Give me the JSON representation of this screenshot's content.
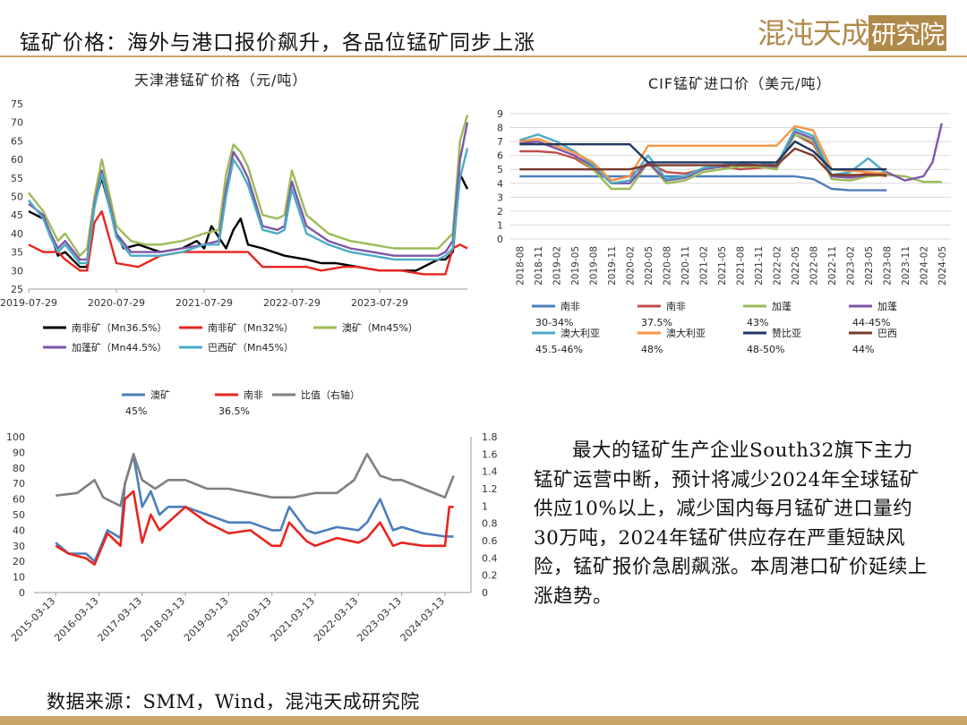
{
  "header": {
    "title": "锰矿价格：海外与港口报价飙升，各品位锰矿同步上涨",
    "logo_text": "混沌天成研究院"
  },
  "body_text": "最大的锰矿生产企业South32旗下主力锰矿运营中断，预计将减少2024年全球锰矿供应10%以上，减少国内每月锰矿进口量约30万吨，2024年锰矿供应存在严重短缺风险，锰矿报价急剧飙涨。本周港口矿价延续上涨趋势。",
  "source_text": "数据来源：SMM，Wind，混沌天成研究院",
  "colors": {
    "accent": "#c9a567",
    "logo": "#b08a4a"
  },
  "chart_data": [
    {
      "type": "line",
      "title": "天津港锰矿价格（元/吨）",
      "x_ticks": [
        "2019-07-29",
        "2020-07-29",
        "2021-07-29",
        "2022-07-29",
        "2023-07-29"
      ],
      "ylim": [
        25,
        75
      ],
      "y_ticks": [
        25,
        30,
        35,
        40,
        45,
        50,
        55,
        60,
        65,
        70,
        75
      ],
      "t_range": [
        0,
        60
      ],
      "series": [
        {
          "name": "南非矿（Mn36.5%）",
          "color": "#000000",
          "t": [
            0,
            2,
            3,
            4,
            5,
            7,
            8,
            9,
            10,
            12,
            13,
            15,
            18,
            21,
            23,
            24,
            25,
            27,
            28,
            29,
            30,
            32,
            35,
            38,
            40,
            42,
            45,
            48,
            50,
            53,
            55,
            56,
            57,
            58,
            59,
            60
          ],
          "values": [
            46,
            44,
            40,
            34,
            35,
            31,
            31,
            48,
            55,
            40,
            36,
            37,
            35,
            36,
            38,
            36,
            42,
            36,
            41,
            44,
            37,
            36,
            34,
            33,
            32,
            32,
            31,
            30,
            30,
            30,
            32,
            33,
            33,
            35,
            56,
            52
          ]
        },
        {
          "name": "南非矿（Mn32%）",
          "color": "#e8251f",
          "t": [
            0,
            2,
            4,
            5,
            7,
            8,
            9,
            10,
            12,
            15,
            18,
            21,
            24,
            25,
            27,
            28,
            30,
            32,
            35,
            38,
            40,
            43,
            45,
            48,
            51,
            54,
            56,
            57,
            58,
            59,
            60
          ],
          "values": [
            37,
            35,
            35,
            33,
            30,
            30,
            43,
            46,
            32,
            31,
            34,
            35,
            35,
            35,
            35,
            35,
            35,
            31,
            31,
            31,
            30,
            31,
            31,
            30,
            30,
            29,
            29,
            29,
            36,
            37,
            36
          ]
        },
        {
          "name": "澳矿（Mn45%）",
          "color": "#9bbb59",
          "t": [
            0,
            2,
            3,
            4,
            5,
            7,
            8,
            9,
            10,
            12,
            14,
            16,
            18,
            21,
            24,
            26,
            27,
            28,
            29,
            30,
            32,
            34,
            35,
            36,
            38,
            41,
            44,
            47,
            50,
            53,
            56,
            57,
            58,
            59,
            60
          ],
          "values": [
            51,
            46,
            42,
            38,
            40,
            34,
            36,
            50,
            60,
            42,
            38,
            37,
            37,
            38,
            40,
            41,
            56,
            64,
            62,
            58,
            45,
            44,
            45,
            57,
            45,
            40,
            38,
            37,
            36,
            36,
            36,
            38,
            40,
            65,
            72
          ]
        },
        {
          "name": "加蓬矿（Mn44.5%）",
          "color": "#7e57a8",
          "t": [
            0,
            2,
            3,
            4,
            5,
            7,
            8,
            9,
            10,
            12,
            14,
            16,
            18,
            21,
            24,
            26,
            27,
            28,
            29,
            30,
            32,
            34,
            35,
            36,
            38,
            41,
            44,
            47,
            50,
            53,
            56,
            57,
            58,
            59,
            60
          ],
          "values": [
            48,
            45,
            40,
            36,
            38,
            33,
            33,
            48,
            57,
            40,
            35,
            35,
            35,
            36,
            37,
            38,
            52,
            62,
            59,
            55,
            42,
            41,
            42,
            54,
            42,
            38,
            36,
            35,
            34,
            34,
            34,
            35,
            38,
            60,
            70
          ]
        },
        {
          "name": "巴西矿（Mn45%）",
          "color": "#4bacc6",
          "t": [
            0,
            2,
            3,
            4,
            5,
            7,
            8,
            9,
            10,
            12,
            14,
            16,
            18,
            21,
            24,
            26,
            27,
            28,
            29,
            30,
            32,
            34,
            35,
            36,
            38,
            41,
            44,
            47,
            50,
            53,
            56,
            57,
            58,
            59,
            60
          ],
          "values": [
            49,
            44,
            39,
            35,
            37,
            32,
            32,
            47,
            56,
            39,
            34,
            34,
            34,
            35,
            37,
            37,
            50,
            60,
            57,
            53,
            41,
            40,
            41,
            52,
            40,
            37,
            35,
            34,
            33,
            33,
            33,
            34,
            36,
            55,
            63
          ]
        }
      ]
    },
    {
      "type": "line",
      "title": "CIF锰矿进口价（美元/吨）",
      "x_ticks": [
        "2018-08",
        "2018-11",
        "2019-02",
        "2019-05",
        "2019-08",
        "2019-11",
        "2020-02",
        "2020-05",
        "2020-08",
        "2020-11",
        "2021-02",
        "2021-05",
        "2021-08",
        "2021-11",
        "2022-02",
        "2022-05",
        "2022-08",
        "2022-11",
        "2023-02",
        "2023-05",
        "2023-08",
        "2023-11",
        "2024-02",
        "2024-05"
      ],
      "ylim": [
        0,
        9
      ],
      "y_ticks": [
        0,
        1,
        2,
        3,
        4,
        5,
        6,
        7,
        8,
        9
      ],
      "series": [
        {
          "name": "南非",
          "name2": "30-34%",
          "color": "#4a7ebb",
          "t": [
            0,
            1,
            2,
            3,
            4,
            5,
            6,
            7,
            8,
            9,
            10,
            11,
            12,
            13,
            14,
            15,
            16,
            17,
            18,
            19,
            20
          ],
          "values": [
            4.5,
            4.5,
            4.5,
            4.5,
            4.5,
            4.5,
            4.5,
            4.5,
            4.5,
            4.5,
            4.5,
            4.5,
            4.5,
            4.5,
            4.5,
            4.5,
            4.3,
            3.6,
            3.5,
            3.5,
            3.5
          ]
        },
        {
          "name": "南非",
          "name2": "37.5%",
          "color": "#c0504d",
          "t": [
            0,
            1,
            2,
            3,
            4,
            5,
            6,
            7,
            8,
            9,
            10,
            11,
            12,
            13,
            14,
            15,
            16,
            17,
            18,
            19,
            20
          ],
          "values": [
            6.3,
            6.3,
            6.2,
            5.8,
            5.0,
            4.2,
            4.5,
            5.5,
            4.8,
            4.7,
            5.0,
            5.2,
            5.0,
            5.1,
            5.2,
            7.5,
            6.8,
            4.5,
            4.5,
            4.7,
            4.5
          ]
        },
        {
          "name": "加蓬",
          "name2": "43%",
          "color": "#9bbb59",
          "t": [
            0,
            1,
            2,
            3,
            4,
            5,
            6,
            7,
            8,
            9,
            10,
            11,
            12,
            13,
            14,
            15,
            16,
            17,
            18,
            19,
            20,
            21,
            22,
            23
          ],
          "values": [
            6.8,
            7.0,
            6.5,
            6.0,
            5.0,
            3.6,
            3.6,
            5.5,
            4.0,
            4.2,
            4.8,
            5.0,
            5.2,
            5.2,
            5.0,
            7.5,
            7.0,
            4.3,
            4.2,
            4.5,
            4.6,
            4.5,
            4.1,
            4.1
          ]
        },
        {
          "name": "加蓬",
          "name2": "44-45%",
          "color": "#7e57a8",
          "t": [
            0,
            1,
            2,
            3,
            4,
            5,
            6,
            7,
            8,
            9,
            10,
            11,
            12,
            13,
            14,
            15,
            16,
            17,
            18,
            19,
            20,
            21,
            22,
            22.5,
            23
          ],
          "values": [
            6.9,
            7.0,
            6.5,
            6.0,
            5.2,
            4.0,
            4.0,
            5.5,
            4.2,
            4.4,
            5.0,
            5.2,
            5.4,
            5.3,
            5.2,
            7.7,
            7.2,
            4.5,
            4.4,
            4.6,
            4.8,
            4.2,
            4.5,
            5.5,
            8.3
          ]
        },
        {
          "name": "澳大利亚",
          "name2": "45.5-46%",
          "color": "#4bacc6",
          "t": [
            0,
            1,
            2,
            3,
            4,
            5,
            6,
            7,
            8,
            9,
            10,
            11,
            12,
            13,
            14,
            15,
            16,
            17,
            18,
            19,
            20
          ],
          "values": [
            7.1,
            7.5,
            7.0,
            6.3,
            5.3,
            4.0,
            4.2,
            6.0,
            4.3,
            4.5,
            5.1,
            5.3,
            5.5,
            5.5,
            5.3,
            7.9,
            7.4,
            4.6,
            4.8,
            5.8,
            4.7
          ]
        },
        {
          "name": "澳大利亚",
          "name2": "48%",
          "color": "#f79646",
          "t": [
            0,
            1,
            2,
            3,
            4,
            5,
            6,
            7,
            8,
            9,
            10,
            11,
            12,
            13,
            14,
            15,
            16,
            17,
            18,
            19,
            20
          ],
          "values": [
            7.0,
            7.2,
            6.7,
            6.2,
            5.5,
            4.2,
            4.5,
            6.7,
            6.7,
            6.7,
            6.7,
            6.7,
            6.7,
            6.7,
            6.7,
            8.1,
            7.8,
            5.0,
            4.9,
            4.8,
            4.7
          ]
        },
        {
          "name": "赞比亚",
          "name2": "48-50%",
          "color": "#1f3864",
          "t": [
            0,
            1,
            2,
            3,
            4,
            5,
            6,
            7,
            8,
            9,
            10,
            11,
            12,
            13,
            14,
            15,
            16,
            17,
            18,
            19,
            20
          ],
          "values": [
            6.8,
            6.8,
            6.8,
            6.8,
            6.8,
            6.8,
            6.8,
            5.5,
            5.5,
            5.5,
            5.5,
            5.5,
            5.5,
            5.5,
            5.5,
            7.0,
            6.3,
            5.0,
            5.0,
            5.0,
            5.0
          ]
        },
        {
          "name": "巴西",
          "name2": "44%",
          "color": "#7b3b2e",
          "t": [
            0,
            1,
            2,
            3,
            4,
            5,
            6,
            7,
            8,
            9,
            10,
            11,
            12,
            13,
            14,
            15,
            16,
            17,
            18,
            19,
            20
          ],
          "values": [
            5.0,
            5.0,
            5.0,
            5.0,
            5.0,
            5.0,
            5.0,
            5.3,
            5.3,
            5.3,
            5.3,
            5.3,
            5.3,
            5.3,
            5.3,
            6.5,
            6.0,
            4.6,
            4.6,
            4.6,
            4.6
          ]
        }
      ]
    },
    {
      "type": "line",
      "title": "",
      "x_ticks": [
        "2015-03-13",
        "2016-03-13",
        "2017-03-13",
        "2018-03-13",
        "2019-03-13",
        "2020-03-13",
        "2021-03-13",
        "2022-03-13",
        "2023-03-13",
        "2024-03-13"
      ],
      "ylim": [
        0,
        100
      ],
      "y_ticks": [
        0,
        10,
        20,
        30,
        40,
        50,
        60,
        70,
        80,
        90,
        100
      ],
      "ylim_right": [
        0,
        1.8
      ],
      "y_ticks_right": [
        0,
        0.2,
        0.4,
        0.6,
        0.8,
        1,
        1.2,
        1.4,
        1.6,
        1.8
      ],
      "legend_sub": [
        "45%",
        "36.5%"
      ],
      "series": [
        {
          "name": "澳矿",
          "axis": "left",
          "color": "#4a7ebb",
          "t": [
            0,
            0.3,
            0.7,
            0.9,
            1.2,
            1.5,
            1.6,
            1.8,
            2.0,
            2.2,
            2.4,
            2.6,
            3,
            3.5,
            4,
            4.5,
            5,
            5.2,
            5.4,
            5.8,
            6,
            6.5,
            7,
            7.2,
            7.5,
            7.8,
            8,
            8.5,
            9,
            9.2
          ],
          "values": [
            32,
            25,
            25,
            20,
            40,
            35,
            70,
            88,
            55,
            65,
            50,
            55,
            55,
            50,
            45,
            45,
            40,
            40,
            55,
            40,
            38,
            42,
            40,
            45,
            60,
            40,
            42,
            38,
            36,
            36
          ]
        },
        {
          "name": "南非",
          "axis": "left",
          "color": "#e8251f",
          "t": [
            0,
            0.3,
            0.7,
            0.9,
            1.2,
            1.5,
            1.6,
            1.8,
            2.0,
            2.2,
            2.4,
            2.6,
            3,
            3.5,
            4,
            4.5,
            5,
            5.2,
            5.4,
            5.8,
            6,
            6.5,
            7,
            7.2,
            7.5,
            7.8,
            8,
            8.5,
            9,
            9.1,
            9.2
          ],
          "values": [
            30,
            25,
            22,
            18,
            38,
            30,
            60,
            65,
            32,
            50,
            40,
            45,
            55,
            45,
            38,
            40,
            30,
            30,
            45,
            33,
            30,
            35,
            32,
            35,
            45,
            30,
            32,
            30,
            30,
            55,
            55
          ]
        },
        {
          "name": "比值（右轴）",
          "axis": "right",
          "color": "#808080",
          "t": [
            0,
            0.5,
            0.9,
            1.1,
            1.5,
            1.6,
            1.8,
            2.0,
            2.3,
            2.6,
            3,
            3.5,
            4,
            4.5,
            5,
            5.5,
            6,
            6.5,
            6.9,
            7.2,
            7.5,
            7.8,
            8,
            8.5,
            9,
            9.2
          ],
          "values": [
            1.12,
            1.15,
            1.3,
            1.1,
            1.0,
            1.25,
            1.6,
            1.3,
            1.2,
            1.3,
            1.3,
            1.2,
            1.2,
            1.15,
            1.1,
            1.1,
            1.15,
            1.15,
            1.3,
            1.6,
            1.35,
            1.3,
            1.3,
            1.2,
            1.1,
            1.35
          ]
        }
      ]
    }
  ]
}
